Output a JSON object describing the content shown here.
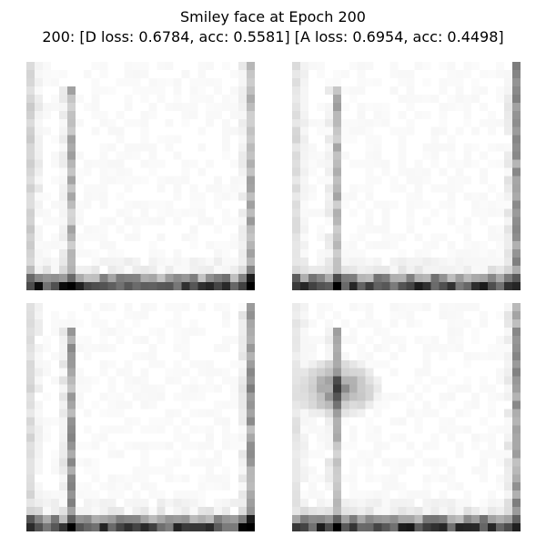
{
  "figure": {
    "title_line1": "Smiley face at Epoch 200",
    "title_line2": "200: [D loss: 0.6784, acc: 0.5581]  [A loss: 0.6954, acc: 0.4498]"
  },
  "palette": {
    "background": "#ffffff",
    "pixel_dark": "#000000",
    "pixel_light": "#ffffff"
  },
  "samples": [
    {
      "id": "tl",
      "left_column_darkness": 0.2,
      "inner_column_darkness": 0.3,
      "right_column_darkness": 0.35,
      "bottom_band_darkness": 0.9,
      "blob": null
    },
    {
      "id": "tr",
      "left_column_darkness": 0.15,
      "inner_column_darkness": 0.3,
      "right_column_darkness": 0.45,
      "bottom_band_darkness": 0.9,
      "blob": null
    },
    {
      "id": "bl",
      "left_column_darkness": 0.15,
      "inner_column_darkness": 0.4,
      "right_column_darkness": 0.45,
      "bottom_band_darkness": 0.9,
      "blob": null
    },
    {
      "id": "br",
      "left_column_darkness": 0.1,
      "inner_column_darkness": 0.3,
      "right_column_darkness": 0.45,
      "bottom_band_darkness": 0.9,
      "blob": {
        "darkness": 0.55
      }
    }
  ]
}
